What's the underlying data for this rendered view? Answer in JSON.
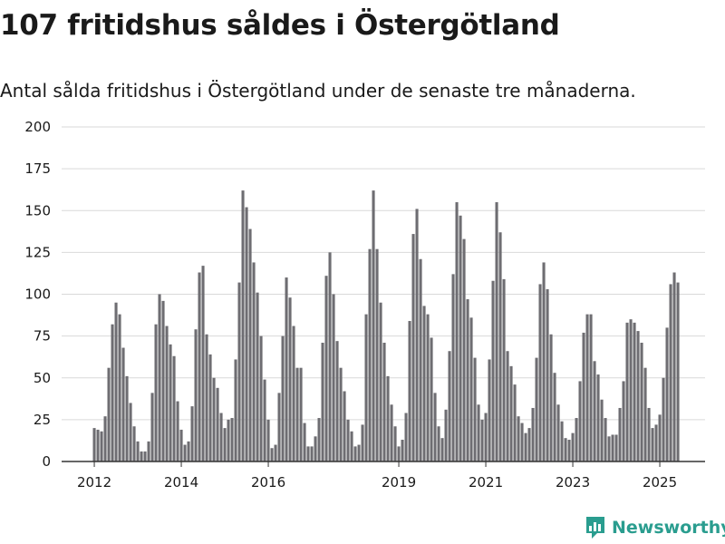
{
  "header": {
    "title": "107 fritidshus såldes i Östergötland",
    "subtitle": "Antal sålda fritidshus i Östergötland under de senaste tre månaderna."
  },
  "colors": {
    "bar": "#6e6d72",
    "highlight": "#2a9d8f",
    "grid": "#d9d9d9",
    "axis": "#333333"
  },
  "brand": {
    "name": "Newsworthy",
    "icon": "newsworthy-bar-chart-logo-icon"
  },
  "chart_data": {
    "type": "bar",
    "title": "107 fritidshus såldes i Östergötland",
    "subtitle": "Antal sålda fritidshus i Östergötland under de senaste tre månaderna.",
    "xlabel": "",
    "ylabel": "",
    "ylim": [
      0,
      200
    ],
    "yticks": [
      0,
      25,
      50,
      75,
      100,
      125,
      150,
      175,
      200
    ],
    "grid": true,
    "legend": "none",
    "x_tick_labels": [
      {
        "label": "2012",
        "index": 0
      },
      {
        "label": "2014",
        "index": 24
      },
      {
        "label": "2016",
        "index": 48
      },
      {
        "label": "2019",
        "index": 84
      },
      {
        "label": "2021",
        "index": 108
      },
      {
        "label": "2023",
        "index": 132
      },
      {
        "label": "2025",
        "index": 156
      }
    ],
    "highlight_index": 163,
    "highlight_label": "107",
    "values": [
      20,
      19,
      18,
      27,
      56,
      82,
      95,
      88,
      68,
      51,
      35,
      21,
      12,
      6,
      6,
      12,
      41,
      82,
      100,
      96,
      81,
      70,
      63,
      36,
      19,
      10,
      12,
      33,
      79,
      113,
      117,
      76,
      64,
      50,
      44,
      29,
      20,
      25,
      26,
      61,
      107,
      162,
      152,
      139,
      119,
      101,
      75,
      49,
      25,
      8,
      10,
      41,
      75,
      110,
      98,
      81,
      56,
      56,
      23,
      9,
      9,
      15,
      26,
      71,
      111,
      125,
      100,
      72,
      56,
      42,
      25,
      18,
      9,
      10,
      22,
      88,
      127,
      162,
      127,
      95,
      71,
      51,
      34,
      21,
      9,
      13,
      29,
      84,
      136,
      151,
      121,
      93,
      88,
      74,
      41,
      21,
      14,
      31,
      66,
      112,
      155,
      147,
      133,
      97,
      86,
      62,
      34,
      25,
      29,
      61,
      108,
      155,
      137,
      109,
      66,
      57,
      46,
      27,
      23,
      17,
      20,
      32,
      62,
      106,
      119,
      103,
      76,
      53,
      34,
      24,
      14,
      13,
      17,
      26,
      48,
      77,
      88,
      88,
      60,
      52,
      37,
      26,
      15,
      16,
      16,
      32,
      48,
      83,
      85,
      83,
      78,
      71,
      56,
      32,
      20,
      22,
      28,
      50,
      80,
      106,
      113,
      107
    ]
  }
}
